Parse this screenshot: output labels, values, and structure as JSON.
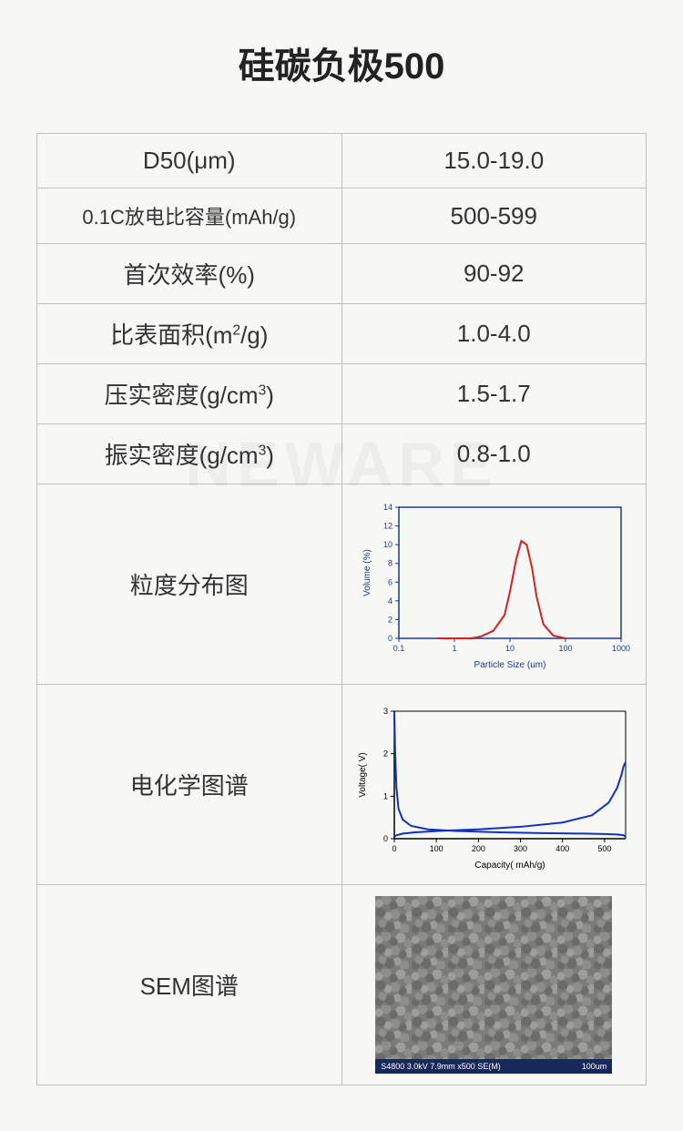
{
  "title": "硅碳负极500",
  "watermark": "NEWARE",
  "table": {
    "rows": [
      {
        "label": "D50(μm)",
        "value": "15.0-19.0"
      },
      {
        "label": "0.1C放电比容量(mAh/g)",
        "value": "500-599",
        "small": true
      },
      {
        "label": "首次效率(%)",
        "value": "90-92"
      },
      {
        "label_html": "比表面积(m<sup>2</sup>/g)",
        "value": "1.0-4.0"
      },
      {
        "label_html": "压实密度(g/cm<sup>3</sup>)",
        "value": "1.5-1.7"
      },
      {
        "label_html": "振实密度(g/cm<sup>3</sup>)",
        "value": "0.8-1.0"
      }
    ],
    "chart_rows": [
      {
        "label": "粒度分布图",
        "chart": "psd"
      },
      {
        "label": "电化学图谱",
        "chart": "echem"
      },
      {
        "label": "SEM图谱",
        "chart": "sem"
      }
    ]
  },
  "psd_chart": {
    "type": "line",
    "xlabel": "Particle Size (um)",
    "ylabel": "Volume (%)",
    "xscale": "log",
    "xlim": [
      0.1,
      1000
    ],
    "xticks": [
      0.1,
      1,
      10,
      100,
      1000
    ],
    "ylim": [
      0,
      14
    ],
    "yticks": [
      0,
      2,
      4,
      6,
      8,
      10,
      12,
      14
    ],
    "line_color": "#d62020",
    "line_width": 2,
    "axis_color": "#1a3a8a",
    "tick_color": "#1a3a8a",
    "label_fontsize": 10,
    "tick_fontsize": 9,
    "data": {
      "x": [
        0.5,
        1,
        2,
        3,
        5,
        8,
        10,
        13,
        16,
        20,
        25,
        30,
        40,
        60,
        100
      ],
      "y": [
        0,
        0,
        0,
        0.2,
        0.8,
        2.5,
        5,
        8.5,
        10.4,
        10.0,
        7.5,
        4.5,
        1.5,
        0.3,
        0
      ]
    }
  },
  "echem_chart": {
    "type": "line",
    "xlabel": "Capacity( mAh/g)",
    "ylabel": "Voltage( V)",
    "xlim": [
      0,
      550
    ],
    "xticks": [
      0,
      100,
      200,
      300,
      400,
      500
    ],
    "ylim": [
      0,
      3
    ],
    "yticks": [
      0,
      1,
      2,
      3
    ],
    "line_color": "#1030c0",
    "line_width": 2,
    "axis_color": "#000000",
    "tick_color": "#000000",
    "label_fontsize": 10,
    "tick_fontsize": 9,
    "curves": [
      {
        "x": [
          0,
          2,
          5,
          10,
          20,
          40,
          80,
          150,
          250,
          350,
          450,
          500,
          530,
          545,
          550
        ],
        "y": [
          3.0,
          2.0,
          1.2,
          0.7,
          0.45,
          0.3,
          0.22,
          0.18,
          0.15,
          0.13,
          0.12,
          0.11,
          0.1,
          0.08,
          0.05
        ]
      },
      {
        "x": [
          0,
          5,
          20,
          50,
          100,
          200,
          300,
          400,
          470,
          510,
          530,
          540,
          545,
          550
        ],
        "y": [
          0.05,
          0.08,
          0.12,
          0.15,
          0.18,
          0.22,
          0.28,
          0.38,
          0.55,
          0.85,
          1.2,
          1.5,
          1.7,
          1.8
        ]
      }
    ]
  },
  "sem": {
    "caption_left": "S4800 3.0kV 7.9mm x500 SE(M)",
    "caption_right": "100um"
  }
}
